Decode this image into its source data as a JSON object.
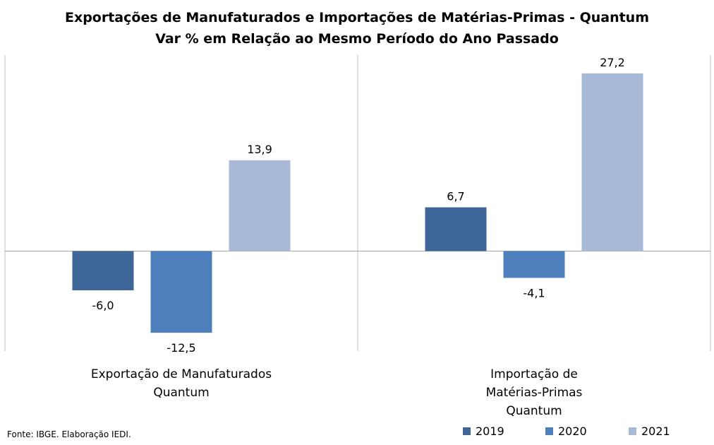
{
  "chart_data": {
    "type": "bar",
    "title": "Exportações de Manufaturados e Importações de Matérias-Primas - Quantum",
    "subtitle": "Var % em Relação ao Mesmo Período do Ano Passado",
    "categories": [
      [
        "Exportação de Manufaturados",
        "Quantum"
      ],
      [
        "Importação de",
        "Matérias-Primas",
        "Quantum"
      ]
    ],
    "series": [
      {
        "name": "2019",
        "color": "#3f6698",
        "values": [
          -6.0,
          6.7
        ],
        "labels": [
          "-6,0",
          "6,7"
        ]
      },
      {
        "name": "2020",
        "color": "#4d80bd",
        "values": [
          -12.5,
          -4.1
        ],
        "labels": [
          "-12,5",
          "-4,1"
        ]
      },
      {
        "name": "2021",
        "color": "#a9b9d8",
        "values": [
          13.9,
          27.2
        ],
        "labels": [
          "13,9",
          "27,2"
        ]
      }
    ],
    "ylim": [
      -15.3,
      30
    ],
    "grid": false,
    "legend": "bottom-right"
  },
  "source": "Fonte: IBGE. Elaboração IEDI."
}
